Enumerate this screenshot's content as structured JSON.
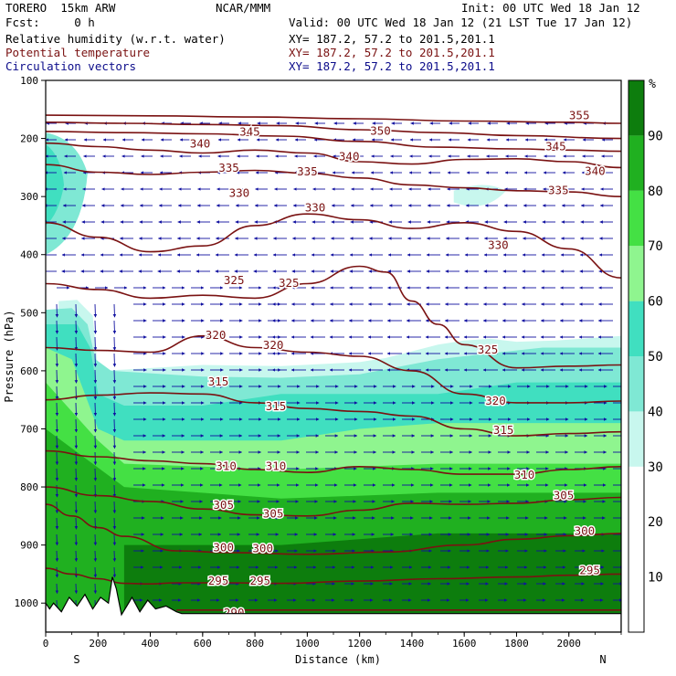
{
  "header": {
    "line1_left": "TORERO  15km ARW",
    "line1_center": "NCAR/MMM",
    "line1_right": "Init: 00 UTC Wed 18 Jan 12",
    "line2_left": "Fcst:     0 h",
    "line2_right": "Valid: 00 UTC Wed 18 Jan 12 (21 LST Tue 17 Jan 12)",
    "fields": [
      {
        "label": "Relative humidity (w.r.t. water)",
        "xy": "XY= 187.2, 57.2 to 201.5,201.1"
      },
      {
        "label": "Potential temperature",
        "xy": "XY= 187.2, 57.2 to 201.5,201.1"
      },
      {
        "label": "Circulation vectors",
        "xy": "XY= 187.2, 57.2 to 201.5,201.1"
      }
    ]
  },
  "chart_data": {
    "type": "heatmap",
    "xlabel": "Distance (km)",
    "ylabel": "Pressure (hPa)",
    "x_start_label": "S",
    "x_end_label": "N",
    "xlim": [
      0,
      2200
    ],
    "x_ticks": [
      0,
      200,
      400,
      600,
      800,
      1000,
      1200,
      1400,
      1600,
      1800,
      2000
    ],
    "ylim": [
      1050,
      100
    ],
    "y_ticks": [
      100,
      200,
      300,
      400,
      500,
      600,
      700,
      800,
      900,
      1000
    ],
    "colorbar": {
      "unit": "%",
      "ticks": [
        10,
        20,
        30,
        40,
        50,
        60,
        70,
        80,
        90
      ],
      "levels": [
        30,
        40,
        50,
        60,
        70,
        80,
        90,
        100
      ],
      "colors": [
        "#ffffff",
        "#c8f7ee",
        "#7fe8d4",
        "#40dfc0",
        "#8ff58f",
        "#44e044",
        "#20b020",
        "#0d7d0d"
      ]
    },
    "theta_contours": [
      {
        "label": 290,
        "points": [
          [
            500,
            1012
          ],
          [
            1000,
            1012
          ],
          [
            1500,
            1012
          ],
          [
            2200,
            1012
          ]
        ],
        "label_at": [
          [
            720,
            1018
          ]
        ]
      },
      {
        "label": 295,
        "points": [
          [
            0,
            940
          ],
          [
            100,
            950
          ],
          [
            200,
            958
          ],
          [
            300,
            966
          ],
          [
            400,
            967
          ],
          [
            500,
            965
          ],
          [
            700,
            965
          ],
          [
            900,
            966
          ],
          [
            1200,
            962
          ],
          [
            1500,
            958
          ],
          [
            1800,
            955
          ],
          [
            2000,
            952
          ],
          [
            2200,
            950
          ]
        ],
        "label_at": [
          [
            660,
            963
          ],
          [
            820,
            963
          ],
          [
            2080,
            945
          ]
        ]
      },
      {
        "label": 300,
        "points": [
          [
            0,
            830
          ],
          [
            100,
            850
          ],
          [
            200,
            870
          ],
          [
            300,
            885
          ],
          [
            500,
            910
          ],
          [
            700,
            913
          ],
          [
            1000,
            916
          ],
          [
            1300,
            912
          ],
          [
            1600,
            900
          ],
          [
            1800,
            890
          ],
          [
            2000,
            884
          ],
          [
            2200,
            880
          ]
        ],
        "label_at": [
          [
            680,
            905
          ],
          [
            830,
            907
          ],
          [
            2060,
            877
          ]
        ]
      },
      {
        "label": 305,
        "points": [
          [
            0,
            800
          ],
          [
            200,
            815
          ],
          [
            400,
            825
          ],
          [
            600,
            838
          ],
          [
            800,
            848
          ],
          [
            1000,
            850
          ],
          [
            1200,
            840
          ],
          [
            1400,
            828
          ],
          [
            1600,
            830
          ],
          [
            1800,
            828
          ],
          [
            2000,
            822
          ],
          [
            2200,
            818
          ]
        ],
        "label_at": [
          [
            680,
            832
          ],
          [
            870,
            847
          ],
          [
            1980,
            816
          ]
        ]
      },
      {
        "label": 310,
        "points": [
          [
            0,
            738
          ],
          [
            200,
            748
          ],
          [
            400,
            755
          ],
          [
            600,
            760
          ],
          [
            800,
            770
          ],
          [
            1000,
            775
          ],
          [
            1200,
            765
          ],
          [
            1400,
            770
          ],
          [
            1600,
            778
          ],
          [
            1800,
            778
          ],
          [
            2000,
            770
          ],
          [
            2200,
            765
          ]
        ],
        "label_at": [
          [
            690,
            765
          ],
          [
            880,
            765
          ],
          [
            1830,
            780
          ]
        ]
      },
      {
        "label": 315,
        "points": [
          [
            0,
            650
          ],
          [
            200,
            642
          ],
          [
            400,
            638
          ],
          [
            600,
            640
          ],
          [
            800,
            655
          ],
          [
            1000,
            665
          ],
          [
            1200,
            670
          ],
          [
            1400,
            678
          ],
          [
            1600,
            700
          ],
          [
            1800,
            712
          ],
          [
            2000,
            708
          ],
          [
            2200,
            705
          ]
        ],
        "label_at": [
          [
            660,
            620
          ],
          [
            880,
            662
          ],
          [
            1750,
            703
          ]
        ]
      },
      {
        "label": 320,
        "points": [
          [
            0,
            560
          ],
          [
            200,
            565
          ],
          [
            400,
            568
          ],
          [
            600,
            540
          ],
          [
            800,
            560
          ],
          [
            1000,
            568
          ],
          [
            1200,
            575
          ],
          [
            1400,
            600
          ],
          [
            1600,
            640
          ],
          [
            1800,
            655
          ],
          [
            2000,
            655
          ],
          [
            2200,
            652
          ]
        ],
        "label_at": [
          [
            650,
            540
          ],
          [
            870,
            557
          ],
          [
            1720,
            653
          ]
        ]
      },
      {
        "label": 325,
        "points": [
          [
            0,
            450
          ],
          [
            200,
            460
          ],
          [
            400,
            475
          ],
          [
            600,
            470
          ],
          [
            800,
            475
          ],
          [
            1000,
            450
          ],
          [
            1200,
            420
          ],
          [
            1300,
            430
          ],
          [
            1400,
            480
          ],
          [
            1500,
            520
          ],
          [
            1600,
            555
          ],
          [
            1800,
            595
          ],
          [
            2000,
            592
          ],
          [
            2200,
            590
          ]
        ],
        "label_at": [
          [
            720,
            445
          ],
          [
            930,
            450
          ],
          [
            1690,
            565
          ]
        ]
      },
      {
        "label": 330,
        "points": [
          [
            0,
            345
          ],
          [
            200,
            370
          ],
          [
            400,
            395
          ],
          [
            600,
            385
          ],
          [
            800,
            350
          ],
          [
            1000,
            330
          ],
          [
            1200,
            340
          ],
          [
            1400,
            355
          ],
          [
            1600,
            345
          ],
          [
            1800,
            360
          ],
          [
            2000,
            390
          ],
          [
            2200,
            440
          ]
        ],
        "label_at": [
          [
            740,
            295
          ],
          [
            1030,
            320
          ],
          [
            1730,
            385
          ]
        ]
      },
      {
        "label": 335,
        "points": [
          [
            0,
            245
          ],
          [
            200,
            258
          ],
          [
            400,
            262
          ],
          [
            600,
            258
          ],
          [
            800,
            255
          ],
          [
            1000,
            260
          ],
          [
            1200,
            268
          ],
          [
            1400,
            280
          ],
          [
            1600,
            285
          ],
          [
            1800,
            290
          ],
          [
            2000,
            292
          ],
          [
            2200,
            300
          ]
        ],
        "label_at": [
          [
            700,
            252
          ],
          [
            1000,
            258
          ],
          [
            1960,
            290
          ]
        ]
      },
      {
        "label": 340,
        "points": [
          [
            0,
            208
          ],
          [
            200,
            214
          ],
          [
            400,
            220
          ],
          [
            600,
            225
          ],
          [
            800,
            220
          ],
          [
            1000,
            225
          ],
          [
            1200,
            240
          ],
          [
            1400,
            244
          ],
          [
            1600,
            236
          ],
          [
            1800,
            235
          ],
          [
            2000,
            240
          ],
          [
            2200,
            250
          ]
        ],
        "label_at": [
          [
            590,
            210
          ],
          [
            1160,
            232
          ],
          [
            2100,
            257
          ]
        ]
      },
      {
        "label": 345,
        "points": [
          [
            0,
            188
          ],
          [
            300,
            190
          ],
          [
            600,
            192
          ],
          [
            900,
            196
          ],
          [
            1200,
            205
          ],
          [
            1500,
            215
          ],
          [
            1800,
            218
          ],
          [
            2000,
            220
          ],
          [
            2200,
            222
          ]
        ],
        "label_at": [
          [
            780,
            190
          ],
          [
            1950,
            215
          ]
        ]
      },
      {
        "label": 350,
        "points": [
          [
            0,
            172
          ],
          [
            300,
            174
          ],
          [
            600,
            176
          ],
          [
            900,
            178
          ],
          [
            1200,
            185
          ],
          [
            1500,
            190
          ],
          [
            1800,
            195
          ],
          [
            2200,
            200
          ]
        ],
        "label_at": [
          [
            1280,
            188
          ]
        ]
      },
      {
        "label": 355,
        "points": [
          [
            0,
            160
          ],
          [
            400,
            161
          ],
          [
            800,
            163
          ],
          [
            1200,
            166
          ],
          [
            1600,
            170
          ],
          [
            2000,
            172
          ],
          [
            2200,
            174
          ]
        ],
        "label_at": [
          [
            2040,
            161
          ]
        ]
      }
    ]
  }
}
